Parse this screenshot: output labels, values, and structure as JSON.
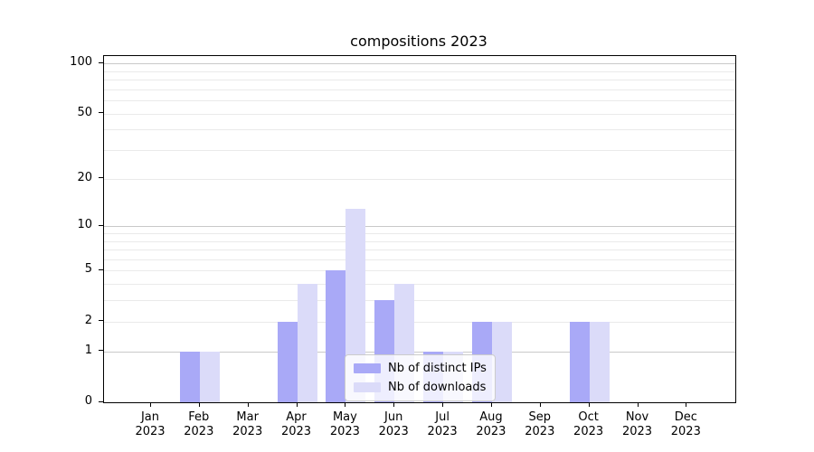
{
  "chart_data": {
    "type": "bar",
    "title": "compositions 2023",
    "x_year_label": "2023",
    "categories": [
      "Jan",
      "Feb",
      "Mar",
      "Apr",
      "May",
      "Jun",
      "Jul",
      "Aug",
      "Sep",
      "Oct",
      "Nov",
      "Dec"
    ],
    "series": [
      {
        "name": "Nb of distinct IPs",
        "color": "#a9a9f7",
        "values": [
          0,
          1,
          0,
          2,
          5,
          3,
          1,
          2,
          0,
          2,
          0,
          0
        ]
      },
      {
        "name": "Nb of downloads",
        "color": "#dbdbf9",
        "values": [
          0,
          1,
          0,
          4,
          13,
          4,
          1,
          2,
          0,
          2,
          0,
          0
        ]
      }
    ],
    "y_axis": {
      "scale": "log1p",
      "ticks": [
        0,
        1,
        2,
        5,
        10,
        20,
        50,
        100
      ],
      "major_gridlines": [
        1,
        10,
        100
      ],
      "minor_gridlines": [
        2,
        3,
        4,
        5,
        6,
        7,
        8,
        9,
        20,
        30,
        40,
        50,
        60,
        70,
        80,
        90
      ],
      "ylim": [
        0,
        100
      ]
    },
    "legend": {
      "position": "lower-center"
    },
    "colors": {
      "grid_major": "#c9c9c9",
      "grid_minor": "#eaeaea",
      "spine": "#000000",
      "background": "#ffffff",
      "text": "#000000"
    }
  }
}
